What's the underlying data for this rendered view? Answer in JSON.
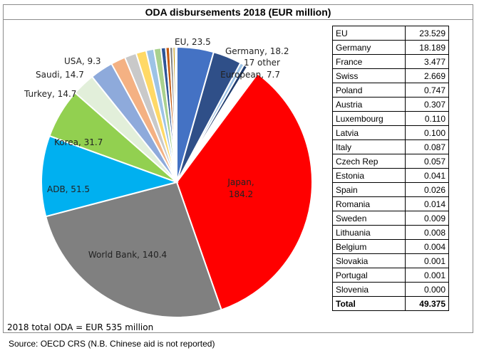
{
  "title": "ODA disbursements 2018 (EUR million)",
  "total_note": "2018 total ODA = EUR 535 million",
  "source": "Source: OECD CRS (N.B. Chinese aid is not reported)",
  "colors": {
    "frame": "#8c8c8c"
  },
  "chart_data": {
    "type": "pie",
    "title": "ODA disbursements 2018 (EUR million)",
    "total": 535,
    "start_angle_deg": 0,
    "direction": "clockwise",
    "slices": [
      {
        "label": "EU, 23.5",
        "value": 23.5,
        "color": "#4472c4"
      },
      {
        "label": "Germany, 18.2",
        "value": 18.2,
        "color": "#2f4f88"
      },
      {
        "label": "",
        "value": 2.5,
        "color": "#9dc3e6"
      },
      {
        "label": "",
        "value": 2.5,
        "color": "#1f3b6e"
      },
      {
        "label": "17 other European, 7.7",
        "value": 7.7,
        "color": "#ffffff"
      },
      {
        "label": "Japan, 184.2",
        "value": 184.2,
        "color": "#ff0000"
      },
      {
        "label": "World Bank, 140.4",
        "value": 140.4,
        "color": "#808080"
      },
      {
        "label": "ADB, 51.5",
        "value": 51.5,
        "color": "#00b0f0"
      },
      {
        "label": "Korea, 31.7",
        "value": 31.7,
        "color": "#92d050"
      },
      {
        "label": "Turkey, 14.7",
        "value": 14.7,
        "color": "#e2efda"
      },
      {
        "label": "Saudi, 14.7",
        "value": 14.7,
        "color": "#8eaadb"
      },
      {
        "label": "USA, 9.3",
        "value": 9.3,
        "color": "#f4b183"
      },
      {
        "label": "",
        "value": 7.5,
        "color": "#c9c9c9"
      },
      {
        "label": "",
        "value": 6.5,
        "color": "#ffd966"
      },
      {
        "label": "",
        "value": 5.0,
        "color": "#9dc3e6"
      },
      {
        "label": "",
        "value": 4.5,
        "color": "#a9d18e"
      },
      {
        "label": "",
        "value": 3.0,
        "color": "#2e5597"
      },
      {
        "label": "",
        "value": 2.5,
        "color": "#c55a11"
      },
      {
        "label": "",
        "value": 2.0,
        "color": "#7f7f7f"
      },
      {
        "label": "",
        "value": 1.5,
        "color": "#bf9000"
      },
      {
        "label": "",
        "value": 1.0,
        "color": "#5b9bd5"
      }
    ],
    "table": {
      "rows": [
        {
          "name": "EU",
          "value": "23.529"
        },
        {
          "name": "Germany",
          "value": "18.189"
        },
        {
          "name": "France",
          "value": "3.477"
        },
        {
          "name": "Swiss",
          "value": "2.669"
        },
        {
          "name": "Poland",
          "value": "0.747"
        },
        {
          "name": "Austria",
          "value": "0.307"
        },
        {
          "name": "Luxembourg",
          "value": "0.110"
        },
        {
          "name": "Latvia",
          "value": "0.100"
        },
        {
          "name": "Italy",
          "value": "0.087"
        },
        {
          "name": "Czech Rep",
          "value": "0.057"
        },
        {
          "name": "Estonia",
          "value": "0.041"
        },
        {
          "name": "Spain",
          "value": "0.026"
        },
        {
          "name": "Romania",
          "value": "0.014"
        },
        {
          "name": "Sweden",
          "value": "0.009"
        },
        {
          "name": "Lithuania",
          "value": "0.008"
        },
        {
          "name": "Belgium",
          "value": "0.004"
        },
        {
          "name": "Slovakia",
          "value": "0.001"
        },
        {
          "name": "Portugal",
          "value": "0.001"
        },
        {
          "name": "Slovenia",
          "value": "0.000"
        }
      ],
      "total": {
        "name": "Total",
        "value": "49.375"
      }
    }
  }
}
